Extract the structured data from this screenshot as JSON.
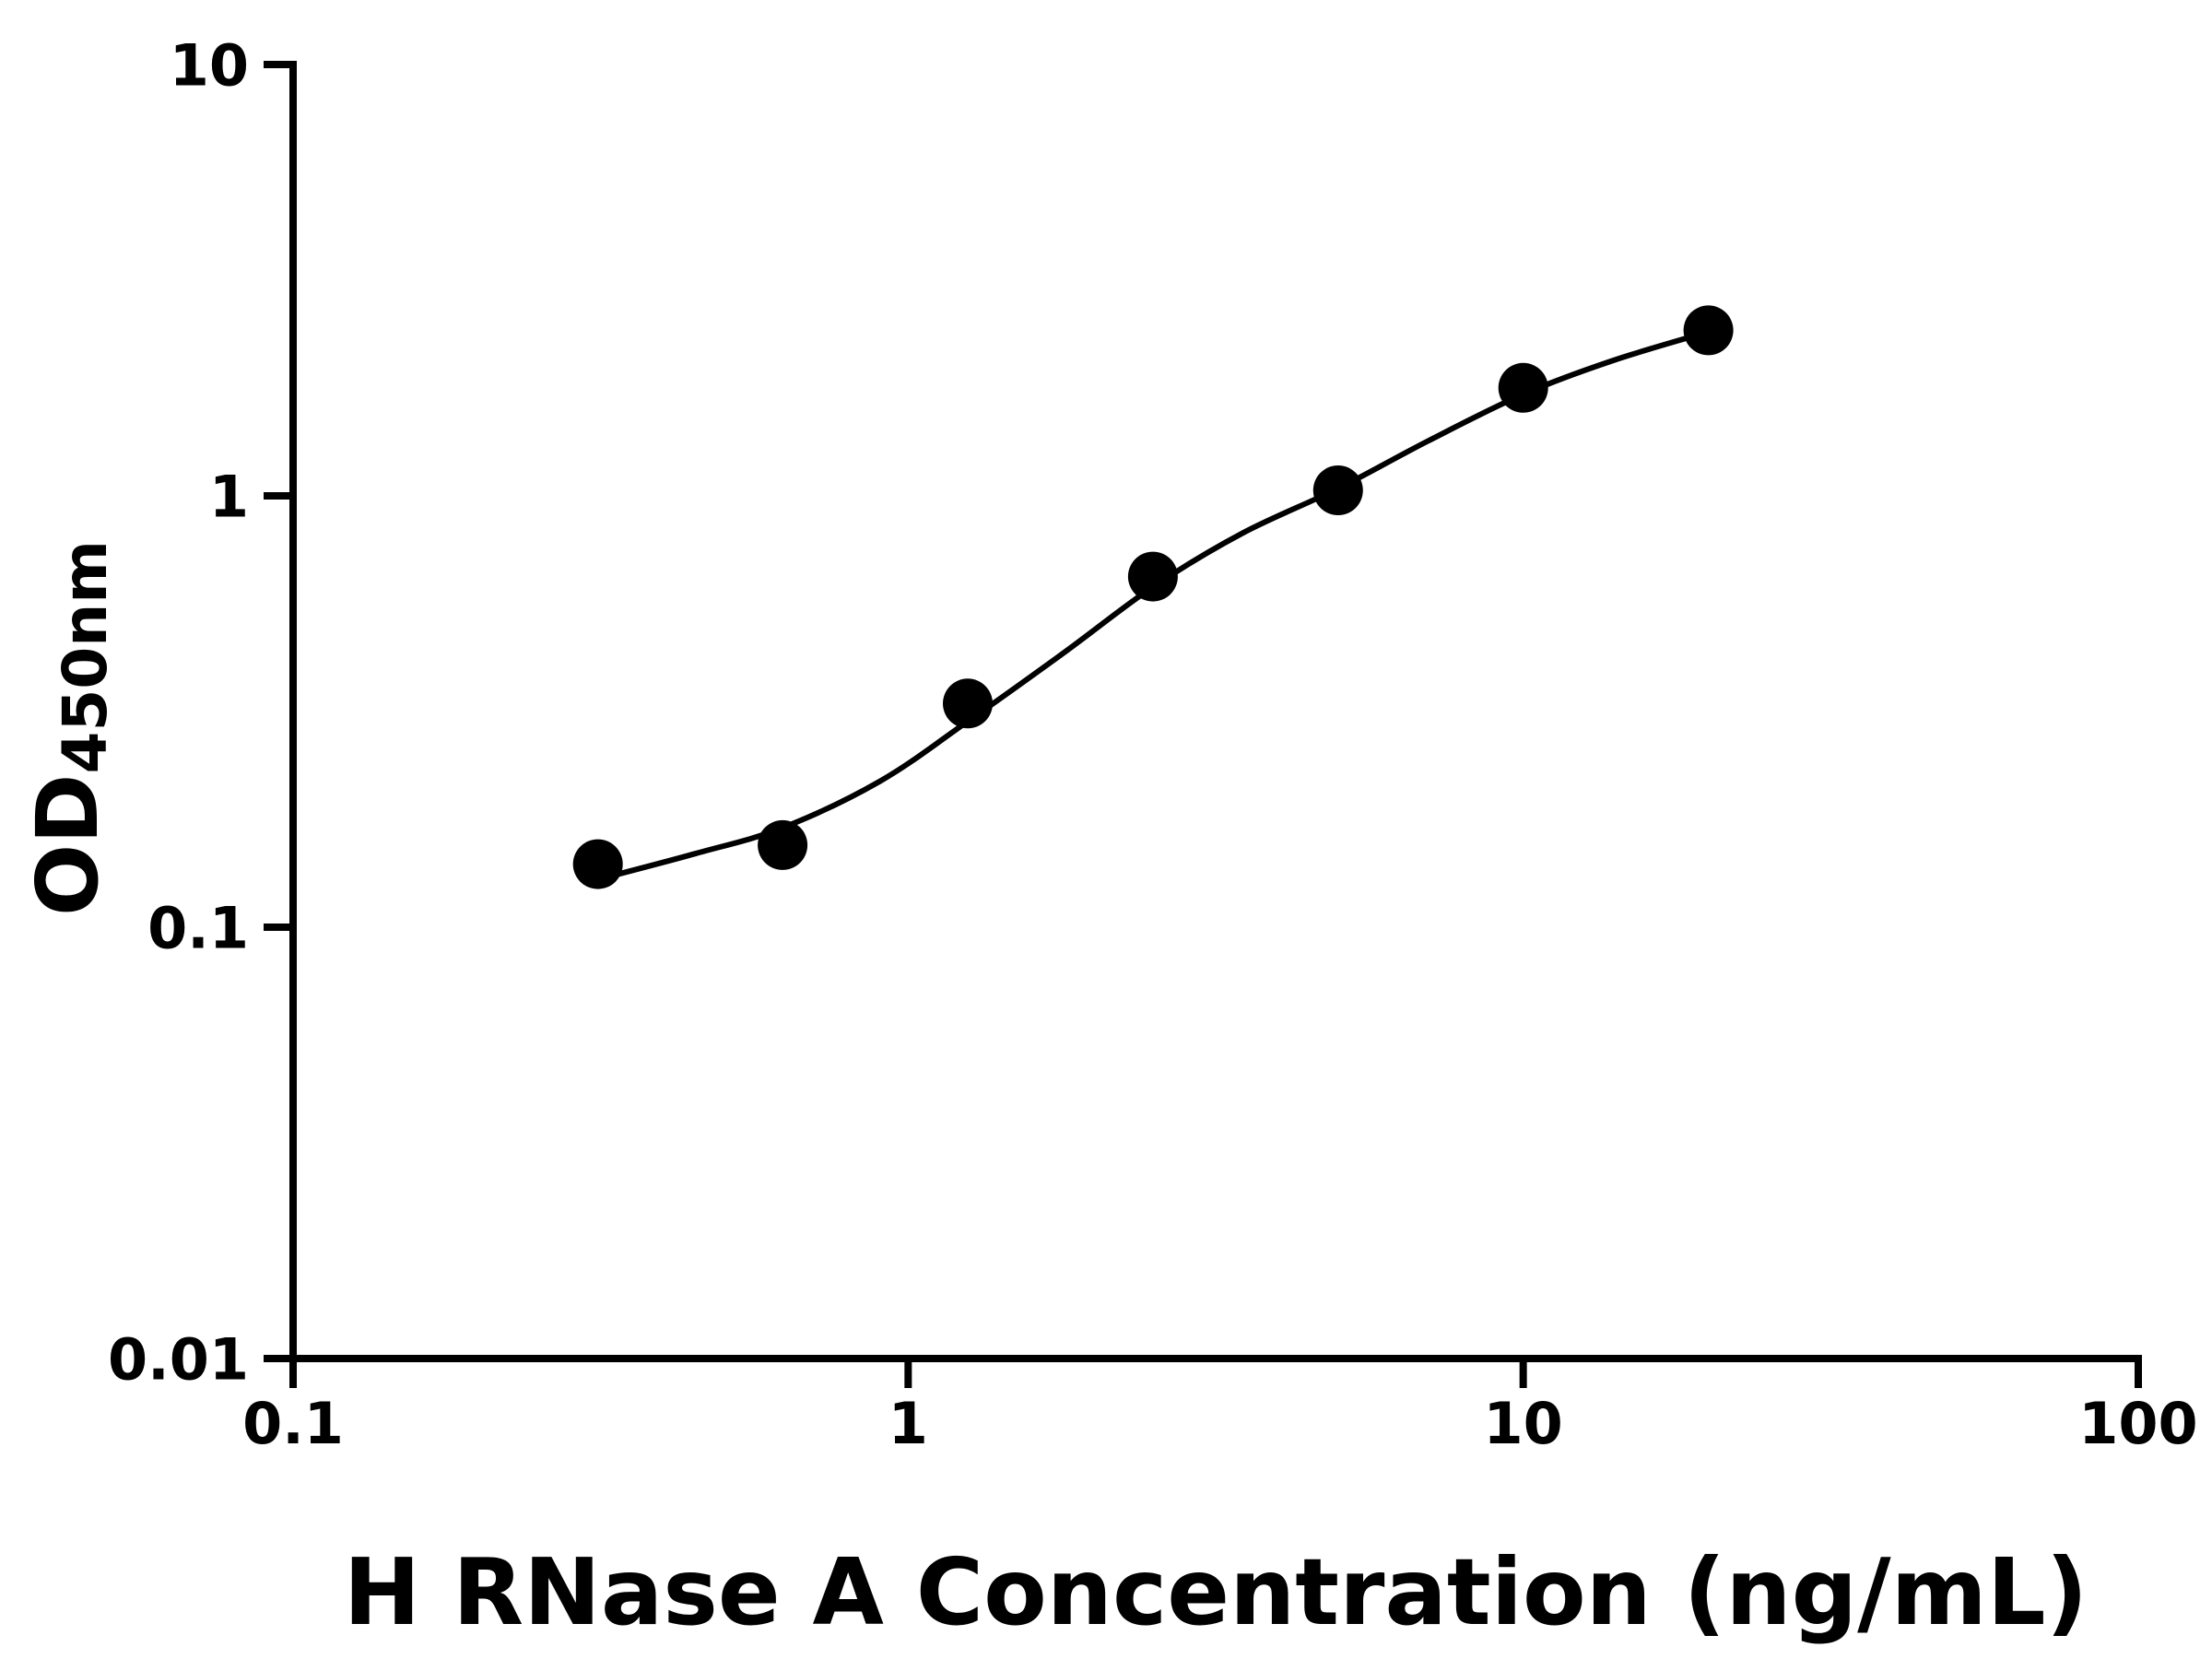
{
  "chart_data": {
    "type": "scatter",
    "title": "",
    "xlabel": "H RNase A Concentration (ng/mL)",
    "ylabel_main": "OD",
    "ylabel_sub": "450nm",
    "x_scale": "log",
    "y_scale": "log",
    "xlim": [
      0.1,
      100
    ],
    "ylim": [
      0.01,
      10
    ],
    "x_ticks": [
      {
        "value": 0.1,
        "label": "0.1"
      },
      {
        "value": 1,
        "label": "1"
      },
      {
        "value": 10,
        "label": "10"
      },
      {
        "value": 100,
        "label": "100"
      }
    ],
    "y_ticks": [
      {
        "value": 0.01,
        "label": "0.01"
      },
      {
        "value": 0.1,
        "label": "0.1"
      },
      {
        "value": 1,
        "label": "1"
      },
      {
        "value": 10,
        "label": "10"
      }
    ],
    "series": [
      {
        "name": "standard_curve_points",
        "x": [
          0.313,
          0.625,
          1.25,
          2.5,
          5,
          10,
          20
        ],
        "y": [
          0.14,
          0.155,
          0.33,
          0.65,
          1.03,
          1.78,
          2.42
        ]
      }
    ],
    "fit_curve": {
      "name": "four_parameter_logistic_fit",
      "points": [
        [
          0.3,
          0.127
        ],
        [
          0.45,
          0.148
        ],
        [
          0.625,
          0.17
        ],
        [
          0.9,
          0.218
        ],
        [
          1.25,
          0.3
        ],
        [
          1.8,
          0.435
        ],
        [
          2.5,
          0.615
        ],
        [
          3.5,
          0.82
        ],
        [
          5,
          1.04
        ],
        [
          7,
          1.34
        ],
        [
          10,
          1.72
        ],
        [
          14,
          2.06
        ],
        [
          20,
          2.4
        ]
      ]
    },
    "legend": "none",
    "grid": false,
    "colors": {
      "marker": "#000000",
      "line": "#000000",
      "axis": "#000000",
      "text": "#000000",
      "background": "#ffffff"
    }
  }
}
